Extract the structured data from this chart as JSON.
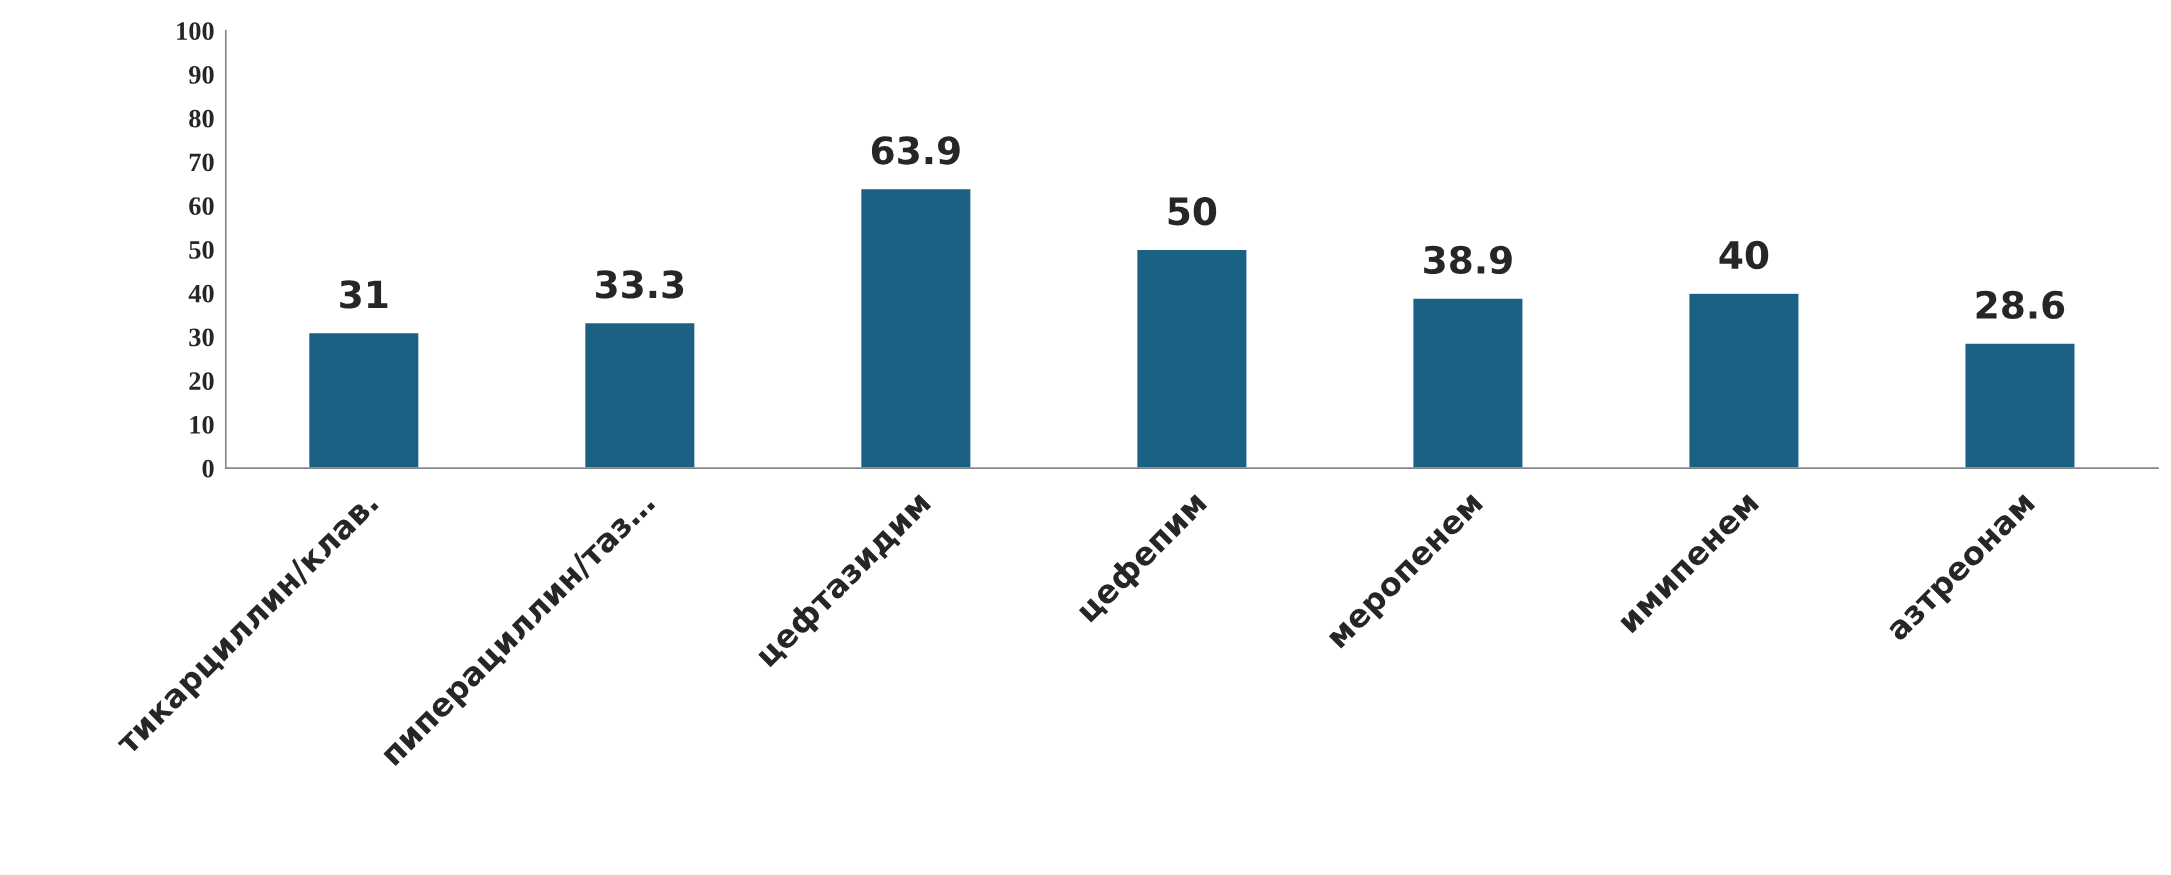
{
  "chart_data": {
    "type": "bar",
    "categories": [
      "тикарциллин/клав.",
      "пиперациллин/таз…",
      "цефтазидим",
      "цефепим",
      "меропенем",
      "имипенем",
      "азтреонам"
    ],
    "values": [
      31,
      33.3,
      63.9,
      50,
      38.9,
      40,
      28.6
    ],
    "color": "#1a6184",
    "ylim": [
      0,
      100
    ],
    "yticks": [
      0,
      10,
      20,
      30,
      40,
      50,
      60,
      70,
      80,
      90,
      100
    ],
    "grid": false,
    "data_labels": true
  }
}
